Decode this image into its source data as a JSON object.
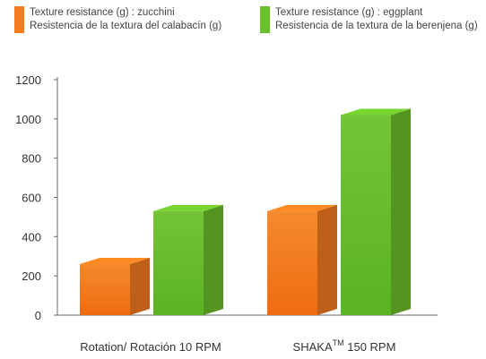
{
  "chart_data": {
    "type": "bar",
    "categories": [
      "Rotation/ Rotación 10 RPM",
      "SHAKA™ 150 RPM"
    ],
    "category_labels": {
      "cat1": "Rotation/ Rotación 10 RPM",
      "cat2_prefix": "SHAKA",
      "cat2_superscript": "TM",
      "cat2_suffix": " 150 RPM"
    },
    "series": [
      {
        "legend_line1": "Texture resistance (g) : zucchini",
        "legend_line2": "Resistencia de la textura del calabacín (g)",
        "values": [
          260,
          530
        ],
        "color": "#f47b20"
      },
      {
        "legend_line1": "Texture resistance (g) : eggplant",
        "legend_line2": "Resistencia de la textura de la berenjena (g)",
        "values": [
          530,
          1020
        ],
        "color": "#6cbf2c"
      }
    ],
    "yticks": [
      0,
      200,
      400,
      600,
      800,
      1000,
      1200
    ],
    "ylim": [
      0,
      1200
    ],
    "grid": false,
    "legend_position": "top"
  }
}
